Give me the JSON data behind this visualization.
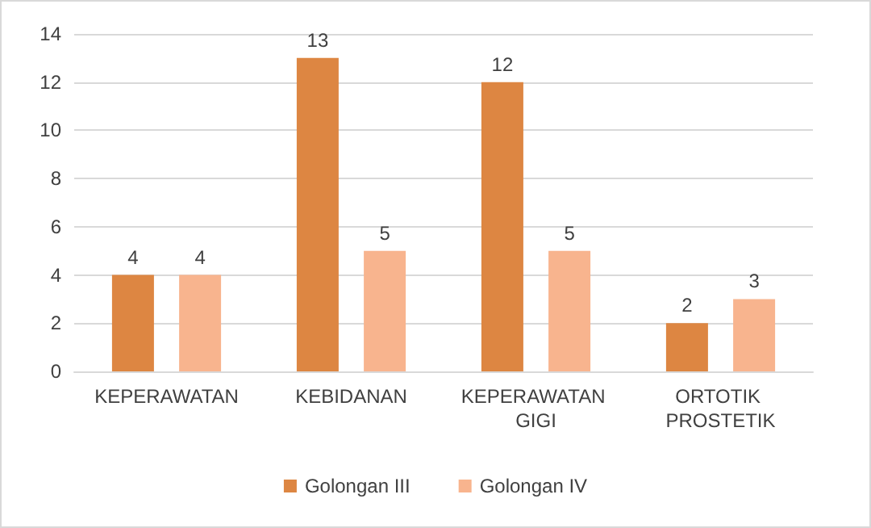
{
  "chart_data": {
    "type": "bar",
    "categories": [
      "KEPERAWATAN",
      "KEBIDANAN",
      "KEPERAWATAN GIGI",
      "ORTOTIK PROSTETIK"
    ],
    "series": [
      {
        "name": "Golongan III",
        "color": "#dd8642",
        "values": [
          4,
          13,
          12,
          2
        ]
      },
      {
        "name": "Golongan IV",
        "color": "#f8b48e",
        "values": [
          4,
          5,
          5,
          3
        ]
      }
    ],
    "ylim": [
      0,
      14
    ],
    "yticks": [
      0,
      2,
      4,
      6,
      8,
      10,
      12,
      14
    ],
    "grid": "y",
    "legend": "bottom",
    "data_labels": true
  }
}
